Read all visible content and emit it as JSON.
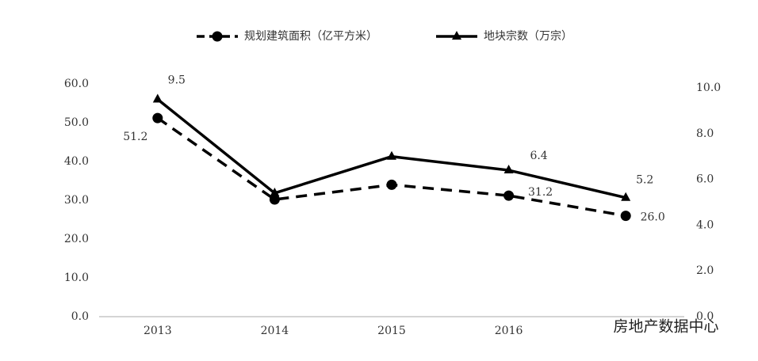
{
  "chart_data": {
    "type": "line",
    "categories": [
      "2013",
      "2014",
      "2015",
      "2016",
      null
    ],
    "series": [
      {
        "name": "规划建筑面积（亿平方米）",
        "color": "#000000",
        "line_style": "dashed",
        "marker": "circle",
        "values": [
          51.2,
          30.2,
          34.0,
          31.2,
          26.0
        ],
        "value_labels": [
          "51.2",
          null,
          null,
          "31.2",
          "26.0"
        ]
      },
      {
        "name": "地块宗数（万宗）",
        "color": "#000000",
        "line_style": "solid",
        "marker": "triangle",
        "axis": "y2",
        "values": [
          9.5,
          5.4,
          7.0,
          6.4,
          5.2
        ],
        "value_labels": [
          "9.5",
          null,
          null,
          "6.4",
          "5.2"
        ]
      }
    ],
    "ylim": [
      0,
      60
    ],
    "yticks": [
      {
        "value": 0,
        "label": "0.0"
      },
      {
        "value": 10,
        "label": "10.0"
      },
      {
        "value": 20,
        "label": "20.0"
      },
      {
        "value": 30,
        "label": "30.0"
      },
      {
        "value": 40,
        "label": "40.0"
      },
      {
        "value": 50,
        "label": "50.0"
      },
      {
        "value": 60,
        "label": "60.0"
      }
    ],
    "y2lim": [
      0,
      10
    ],
    "y2ticks": [
      {
        "value": 0,
        "label": "0.0"
      },
      {
        "value": 2,
        "label": "2.0"
      },
      {
        "value": 4,
        "label": "4.0"
      },
      {
        "value": 6,
        "label": "6.0"
      },
      {
        "value": 8,
        "label": "8.0"
      },
      {
        "value": 10,
        "label": "10.0"
      }
    ],
    "legend": "top",
    "watermark": "房地产数据中心"
  }
}
